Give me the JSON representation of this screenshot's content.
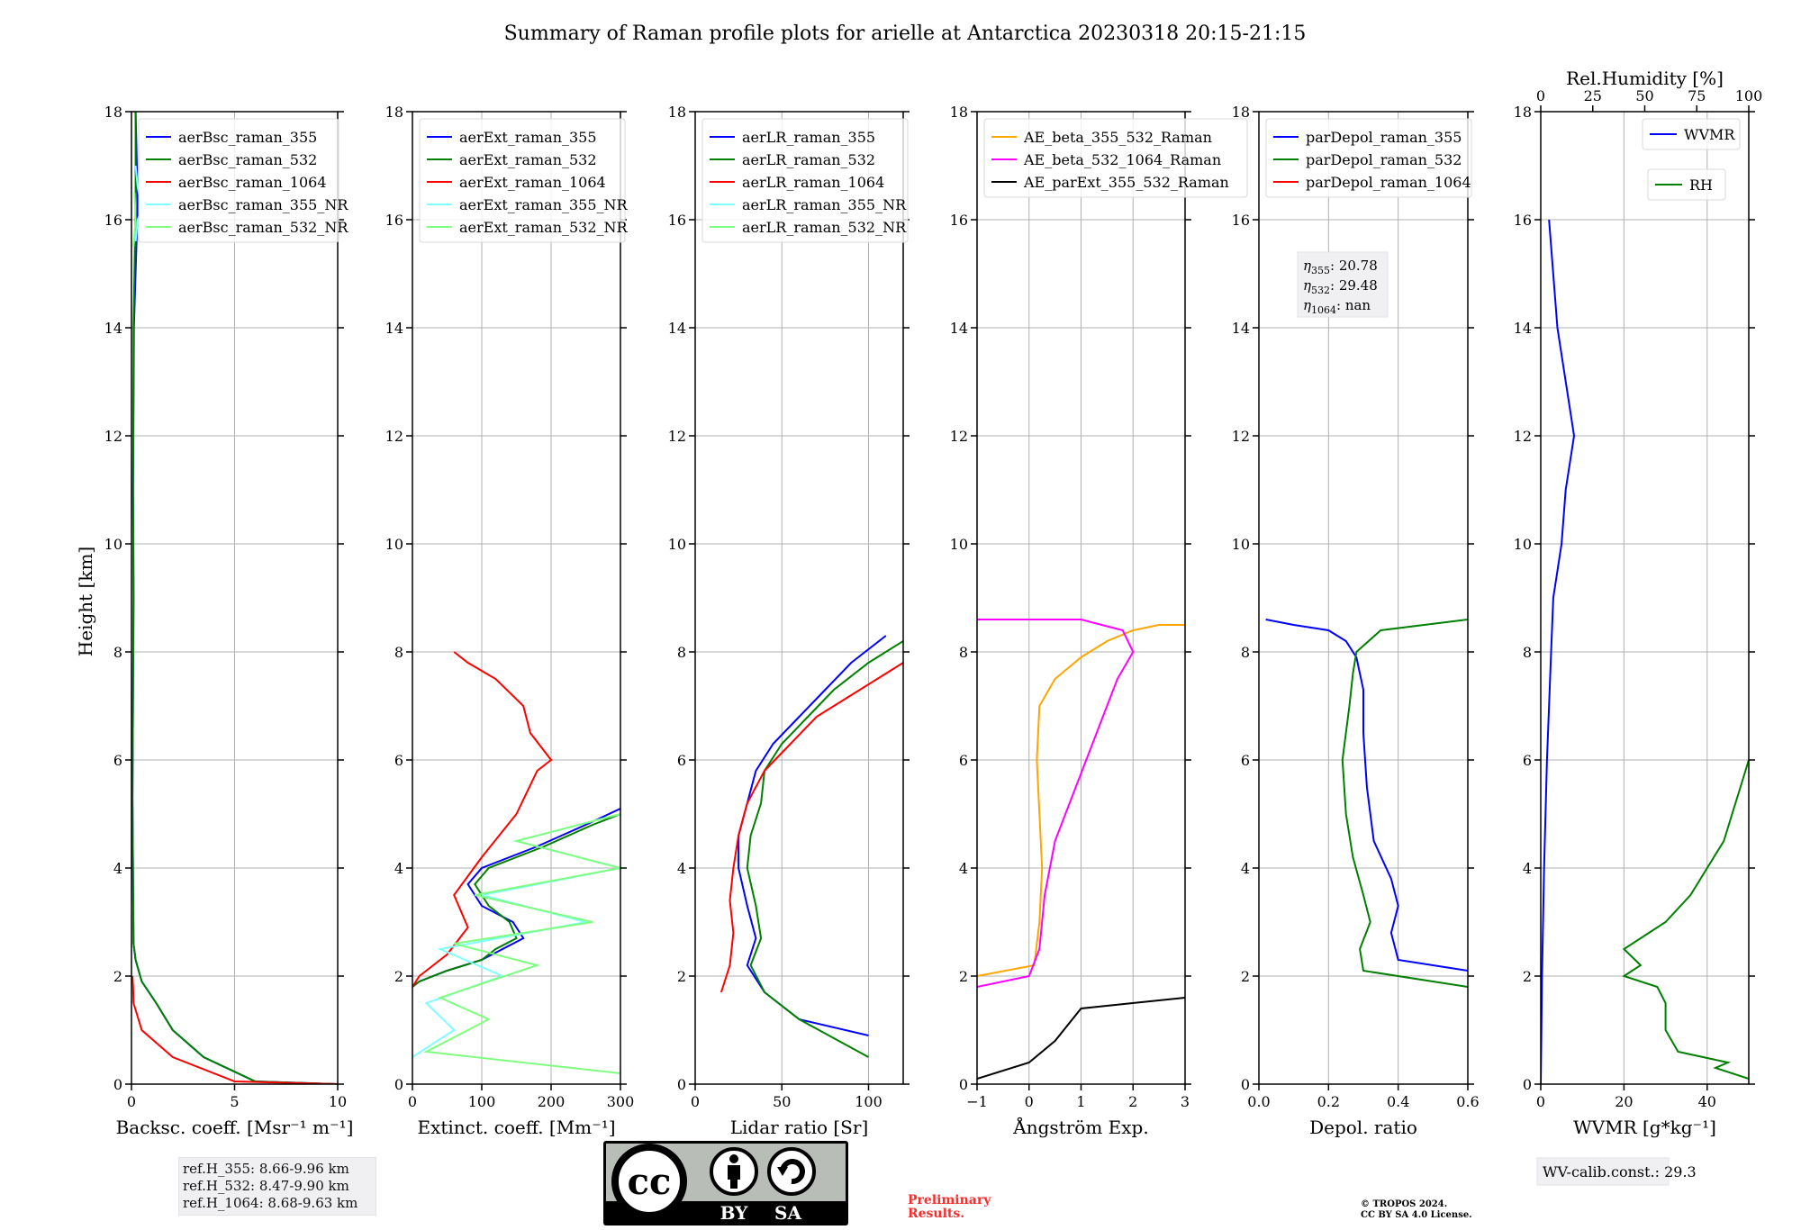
{
  "figure": {
    "title": "Summary of Raman profile plots for arielle at Antarctica 20230318 20:15-21:15",
    "ylabel": "Height [km]"
  },
  "chart_data": [
    {
      "type": "line",
      "xlabel": "Backsc. coeff. [Msr⁻¹ m⁻¹]",
      "xlim": [
        0,
        10
      ],
      "xticks": [
        0,
        5,
        10
      ],
      "ylim": [
        0,
        18
      ],
      "yticks": [
        0,
        2,
        4,
        6,
        8,
        10,
        12,
        14,
        16,
        18
      ],
      "grid": true,
      "legend_position": "upper-left",
      "series": [
        {
          "name": "aerBsc_raman_355",
          "color": "#0000ff",
          "x": [
            10,
            6,
            3.5,
            2,
            1.2,
            0.5,
            0.2,
            0.1,
            0.05,
            0.1,
            0.08,
            0.12,
            0.3,
            0.2
          ],
          "y": [
            0,
            0.05,
            0.5,
            1.0,
            1.5,
            1.9,
            2.3,
            2.6,
            5.3,
            9.0,
            11.0,
            14.0,
            16.3,
            18
          ]
        },
        {
          "name": "aerBsc_raman_532",
          "color": "#008000",
          "x": [
            10,
            6,
            3.5,
            2,
            1.2,
            0.5,
            0.2,
            0.1,
            0.05,
            0.1,
            0.08,
            0.1,
            0.2,
            0.2
          ],
          "y": [
            0,
            0.05,
            0.5,
            1.0,
            1.5,
            1.9,
            2.3,
            2.6,
            5.3,
            9.0,
            11.0,
            14.0,
            16.3,
            18
          ]
        },
        {
          "name": "aerBsc_raman_1064",
          "color": "#ff0000",
          "x": [
            10,
            5,
            2,
            0.5,
            0.1,
            0.08,
            0.05
          ],
          "y": [
            0,
            0.05,
            0.5,
            1.0,
            1.5,
            1.8,
            2.0
          ]
        },
        {
          "name": "aerBsc_raman_355_NR",
          "color": "#7fffff",
          "x": [
            0.2,
            0.3,
            0.5,
            0.3,
            0.2
          ],
          "y": [
            15.6,
            16.0,
            16.2,
            16.6,
            17.0
          ]
        },
        {
          "name": "aerBsc_raman_532_NR",
          "color": "#7fff7f",
          "x": [
            0.1,
            0.2,
            0.15
          ],
          "y": [
            15.5,
            16.0,
            16.5
          ]
        }
      ]
    },
    {
      "type": "line",
      "xlabel": "Extinct. coeff. [Mm⁻¹]",
      "xlim": [
        0,
        300
      ],
      "xticks": [
        0,
        100,
        200,
        300
      ],
      "ylim": [
        0,
        18
      ],
      "yticks": [
        0,
        2,
        4,
        6,
        8,
        10,
        12,
        14,
        16,
        18
      ],
      "grid": true,
      "legend_position": "upper-left",
      "series": [
        {
          "name": "aerExt_raman_355",
          "color": "#0000ff",
          "x": [
            0,
            10,
            50,
            100,
            130,
            160,
            145,
            100,
            80,
            100,
            180,
            250,
            300
          ],
          "y": [
            1.8,
            1.9,
            2.1,
            2.3,
            2.5,
            2.7,
            3.0,
            3.3,
            3.7,
            4.0,
            4.4,
            4.8,
            5.1
          ]
        },
        {
          "name": "aerExt_raman_532",
          "color": "#008000",
          "x": [
            0,
            10,
            50,
            100,
            120,
            150,
            140,
            110,
            90,
            110,
            190,
            260,
            300
          ],
          "y": [
            1.8,
            1.9,
            2.1,
            2.3,
            2.5,
            2.7,
            3.0,
            3.3,
            3.7,
            4.0,
            4.4,
            4.8,
            5.0
          ]
        },
        {
          "name": "aerExt_raman_1064",
          "color": "#ff0000",
          "x": [
            0,
            10,
            50,
            80,
            60,
            100,
            150,
            180,
            200,
            170,
            160,
            120,
            80,
            60
          ],
          "y": [
            1.8,
            2.0,
            2.4,
            2.9,
            3.5,
            4.2,
            5.0,
            5.8,
            6.0,
            6.5,
            7.0,
            7.5,
            7.8,
            8.0
          ]
        },
        {
          "name": "aerExt_raman_355_NR",
          "color": "#7fffff",
          "x": [
            0,
            60,
            20,
            130,
            40,
            250,
            100,
            300,
            150,
            300
          ],
          "y": [
            0.5,
            1.0,
            1.5,
            2.0,
            2.5,
            3.0,
            3.5,
            4.0,
            4.5,
            5.0
          ]
        },
        {
          "name": "aerExt_raman_532_NR",
          "color": "#7fff7f",
          "x": [
            300,
            20,
            110,
            40,
            180,
            60,
            260,
            90,
            300,
            150,
            300
          ],
          "y": [
            0.2,
            0.6,
            1.2,
            1.6,
            2.2,
            2.6,
            3.0,
            3.5,
            4.0,
            4.5,
            5.0
          ]
        }
      ]
    },
    {
      "type": "line",
      "xlabel": "Lidar ratio [Sr]",
      "xlim": [
        0,
        120
      ],
      "xticks": [
        0,
        50,
        100
      ],
      "ylim": [
        0,
        18
      ],
      "yticks": [
        0,
        2,
        4,
        6,
        8,
        10,
        12,
        14,
        16,
        18
      ],
      "grid": true,
      "legend_position": "upper-left",
      "series": [
        {
          "name": "aerLR_raman_355",
          "color": "#0000ff",
          "x": [
            100,
            60,
            40,
            30,
            35,
            30,
            25,
            25,
            30,
            35,
            45,
            60,
            75,
            90,
            110
          ],
          "y": [
            0.9,
            1.2,
            1.7,
            2.2,
            2.7,
            3.3,
            4.0,
            4.6,
            5.2,
            5.8,
            6.3,
            6.8,
            7.3,
            7.8,
            8.3
          ]
        },
        {
          "name": "aerLR_raman_532",
          "color": "#008000",
          "x": [
            100,
            60,
            40,
            32,
            38,
            35,
            30,
            32,
            38,
            40,
            50,
            65,
            80,
            100,
            120
          ],
          "y": [
            0.5,
            1.2,
            1.7,
            2.2,
            2.7,
            3.3,
            4.0,
            4.6,
            5.2,
            5.8,
            6.3,
            6.8,
            7.3,
            7.8,
            8.2
          ]
        },
        {
          "name": "aerLR_raman_1064",
          "color": "#ff0000",
          "x": [
            15,
            20,
            22,
            20,
            22,
            25,
            30,
            40,
            55,
            70,
            90,
            110,
            120
          ],
          "y": [
            1.7,
            2.2,
            2.8,
            3.4,
            4.0,
            4.6,
            5.2,
            5.8,
            6.3,
            6.8,
            7.2,
            7.6,
            7.8
          ]
        },
        {
          "name": "aerLR_raman_355_NR",
          "color": "#7fffff",
          "x": [],
          "y": []
        },
        {
          "name": "aerLR_raman_532_NR",
          "color": "#7fff7f",
          "x": [],
          "y": []
        }
      ]
    },
    {
      "type": "line",
      "xlabel": "Ångström Exp.",
      "xlim": [
        -1,
        3
      ],
      "xticks": [
        -1,
        0,
        1,
        2,
        3
      ],
      "ylim": [
        0,
        18
      ],
      "yticks": [
        0,
        2,
        4,
        6,
        8,
        10,
        12,
        14,
        16,
        18
      ],
      "grid": true,
      "legend_position": "upper-left",
      "series": [
        {
          "name": "AE_beta_355_532_Raman",
          "color": "#ffa500",
          "x": [
            -1,
            0.1,
            0.2,
            0.25,
            0.2,
            0.15,
            0.2,
            0.5,
            1.0,
            1.5,
            2.0,
            2.5,
            3.0
          ],
          "y": [
            2.0,
            2.2,
            3.0,
            4.0,
            5.0,
            6.0,
            7.0,
            7.5,
            7.9,
            8.2,
            8.4,
            8.5,
            8.5
          ]
        },
        {
          "name": "AE_beta_532_1064_Raman",
          "color": "#ff00ff",
          "x": [
            -1,
            0,
            0.2,
            0.3,
            0.5,
            0.9,
            1.3,
            1.7,
            2.0,
            1.8,
            1.0,
            -1
          ],
          "y": [
            1.8,
            2.0,
            2.5,
            3.5,
            4.5,
            5.5,
            6.5,
            7.5,
            8.0,
            8.4,
            8.6,
            8.6
          ]
        },
        {
          "name": "AE_parExt_355_532_Raman",
          "color": "#000000",
          "x": [
            -1,
            0,
            0.5,
            1.0,
            3.0
          ],
          "y": [
            0.1,
            0.4,
            0.8,
            1.4,
            1.6
          ]
        }
      ]
    },
    {
      "type": "line",
      "xlabel": "Depol. ratio",
      "xlim": [
        0,
        0.6
      ],
      "xticks": [
        0.0,
        0.2,
        0.4,
        0.6
      ],
      "ylim": [
        0,
        18
      ],
      "yticks": [
        0,
        2,
        4,
        6,
        8,
        10,
        12,
        14,
        16,
        18
      ],
      "grid": true,
      "legend_position": "upper-left",
      "series": [
        {
          "name": "parDepol_raman_355",
          "color": "#0000ff",
          "x": [
            0.6,
            0.4,
            0.38,
            0.4,
            0.38,
            0.33,
            0.31,
            0.3,
            0.3,
            0.28,
            0.25,
            0.2,
            0.1,
            0.02
          ],
          "y": [
            2.1,
            2.3,
            2.8,
            3.3,
            3.8,
            4.5,
            5.5,
            6.5,
            7.3,
            7.9,
            8.2,
            8.4,
            8.5,
            8.6
          ]
        },
        {
          "name": "parDepol_raman_532",
          "color": "#008000",
          "x": [
            0.6,
            0.3,
            0.29,
            0.32,
            0.3,
            0.27,
            0.25,
            0.24,
            0.26,
            0.27,
            0.28,
            0.35,
            0.6
          ],
          "y": [
            1.8,
            2.1,
            2.5,
            3.0,
            3.5,
            4.2,
            5.0,
            6.0,
            7.0,
            7.6,
            8.0,
            8.4,
            8.6
          ]
        },
        {
          "name": "parDepol_raman_1064",
          "color": "#ff0000",
          "x": [],
          "y": []
        }
      ],
      "annotation": {
        "eta355": "20.78",
        "eta532": "29.48",
        "eta1064": "nan"
      }
    },
    {
      "type": "line",
      "xlabel": "WVMR [g*kg⁻¹]",
      "xlim": [
        0,
        50
      ],
      "xticks": [
        0,
        20,
        40
      ],
      "x2label": "Rel.Humidity [%]",
      "x2lim": [
        0,
        100
      ],
      "x2ticks": [
        0,
        25,
        50,
        75,
        100
      ],
      "ylim": [
        0,
        18
      ],
      "yticks": [
        0,
        2,
        4,
        6,
        8,
        10,
        12,
        14,
        16,
        18
      ],
      "grid": true,
      "legend_position": "upper-right",
      "series": [
        {
          "name": "WVMR",
          "color": "#0000ff",
          "x": [
            0,
            0.3,
            0.8,
            1.5,
            2.5,
            3,
            5,
            6,
            8,
            4,
            2
          ],
          "y": [
            0,
            2,
            4,
            6,
            8,
            9,
            10,
            11,
            12,
            14,
            16
          ]
        },
        {
          "name": "RH",
          "color": "#008000",
          "x": [
            50,
            42,
            45,
            33,
            30,
            30,
            28,
            20,
            24,
            20,
            26,
            30,
            36,
            40,
            44,
            46,
            48,
            50
          ],
          "y": [
            0.1,
            0.3,
            0.4,
            0.6,
            1.0,
            1.5,
            1.8,
            2.0,
            2.2,
            2.5,
            2.8,
            3.0,
            3.5,
            4.0,
            4.5,
            5.0,
            5.5,
            6.0
          ]
        }
      ],
      "annotation": {
        "calib": "WV-calib.const.: 29.3"
      }
    }
  ],
  "ref_heights": [
    "ref.H_355: 8.66-9.96 km",
    "ref.H_532: 8.47-9.90 km",
    "ref.H_1064: 8.68-9.63 km"
  ],
  "license_badge": {
    "by": "BY",
    "sa": "SA",
    "cc": "cc"
  },
  "preliminary": [
    "Preliminary",
    "Results."
  ],
  "copyright": [
    "© TROPOS 2024.",
    "CC BY SA 4.0 License."
  ]
}
